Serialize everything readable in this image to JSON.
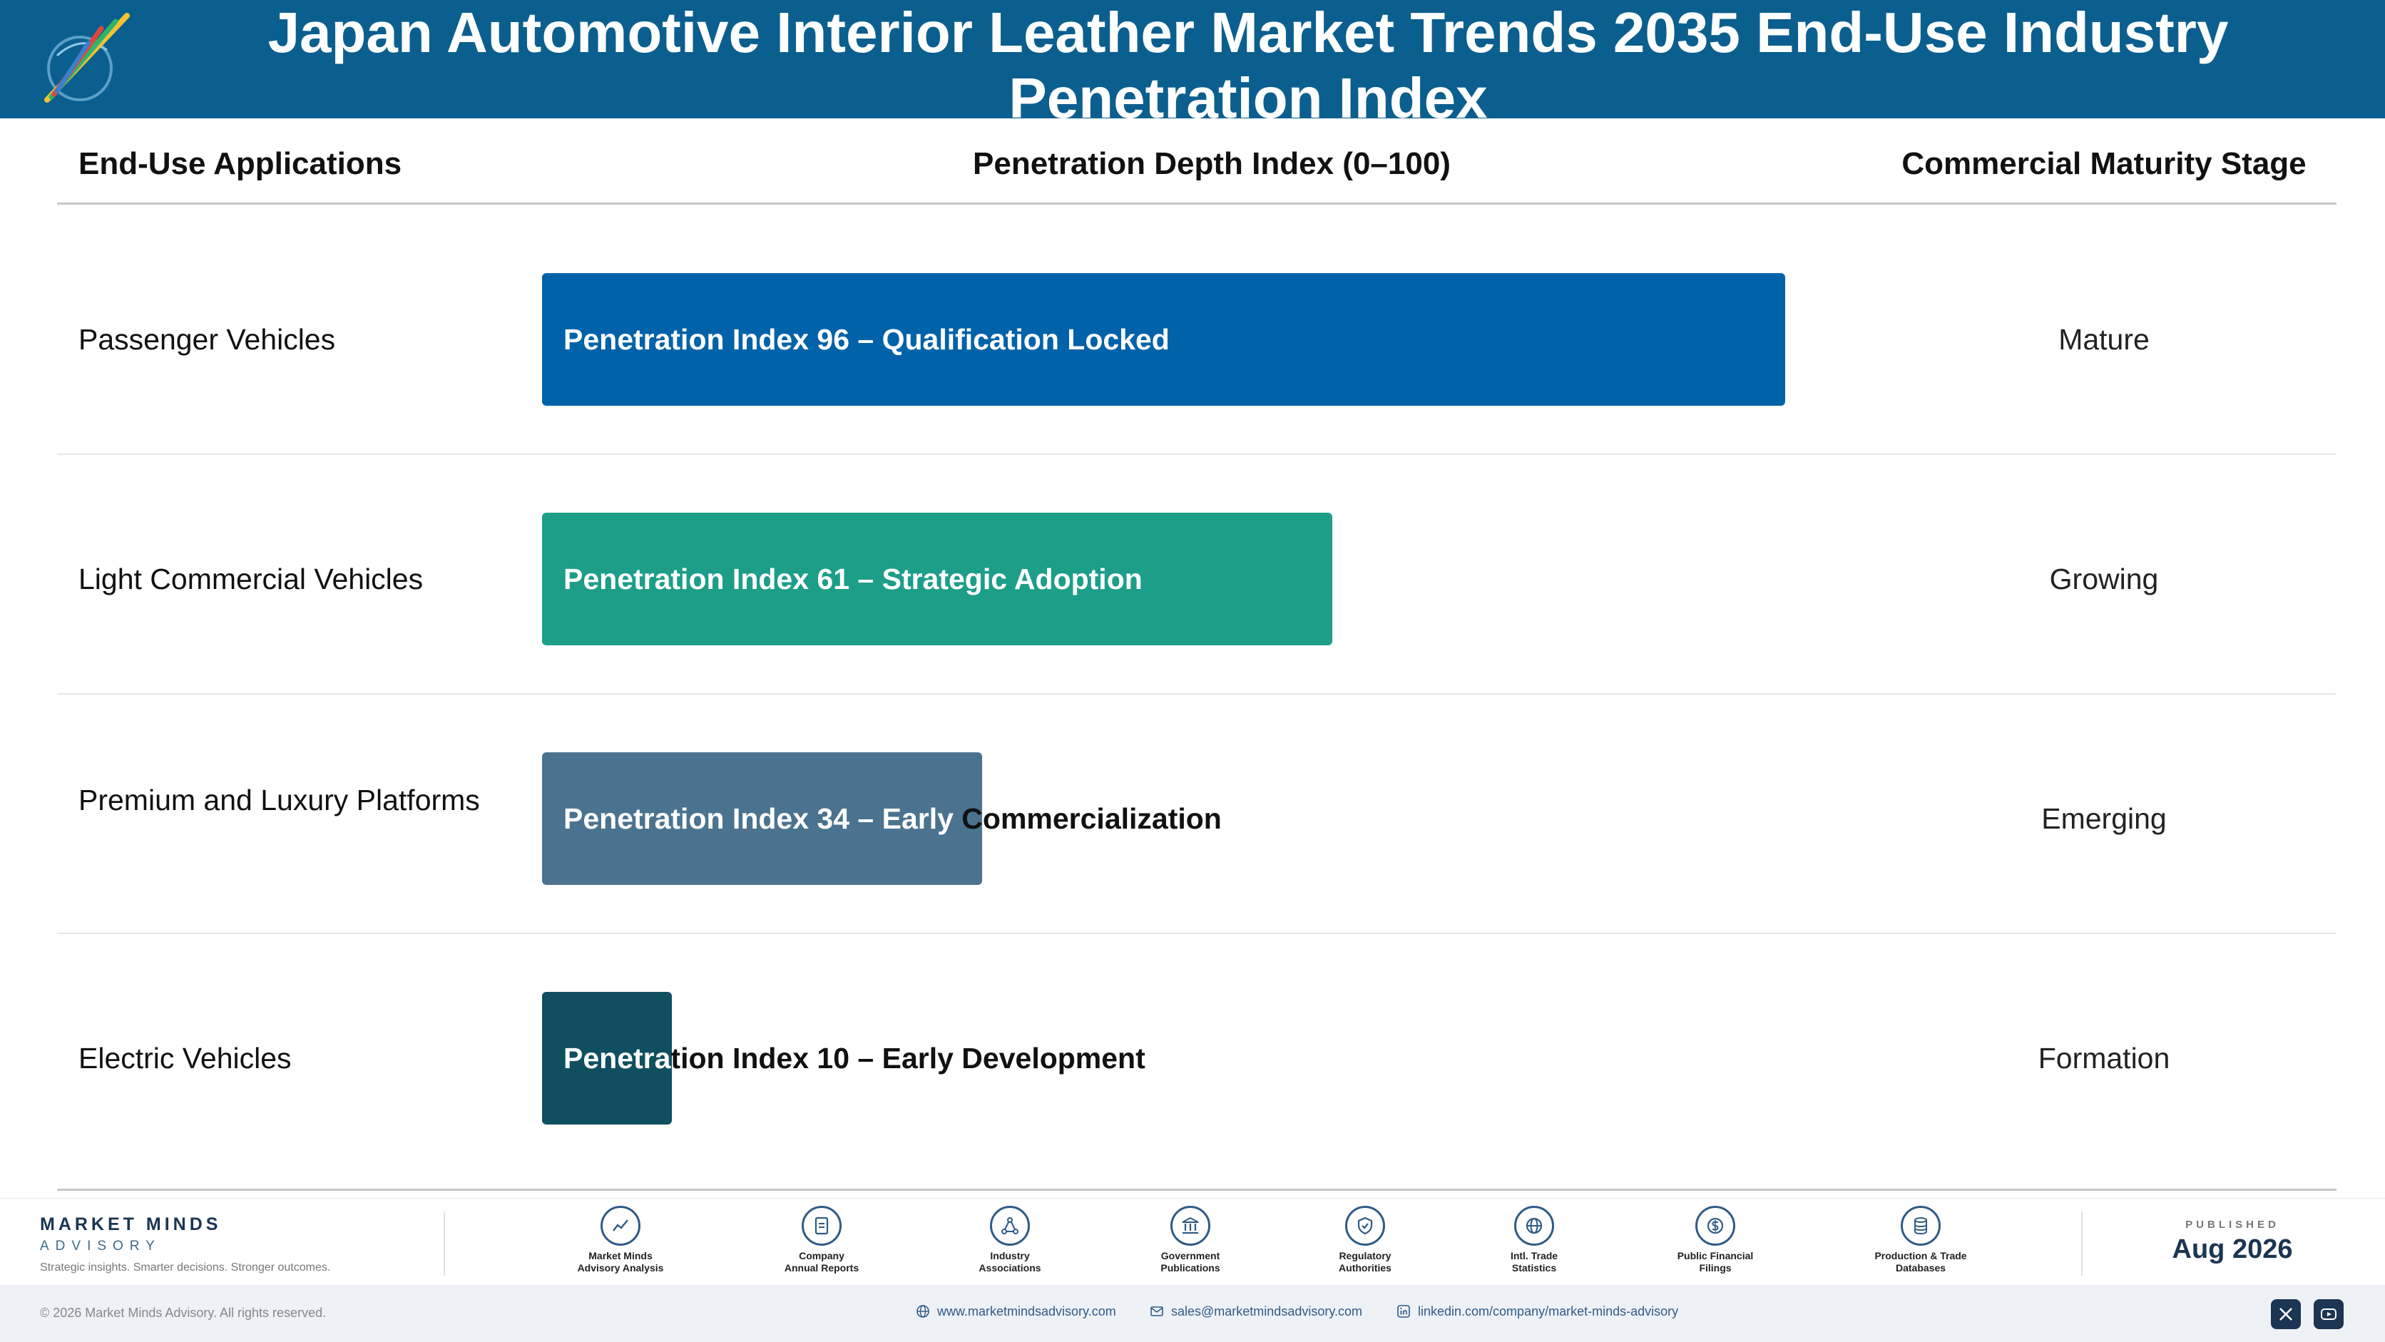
{
  "header": {
    "title": "Japan Automotive Interior Leather Market Trends 2035 End-Use Industry Penetration Index"
  },
  "columns": {
    "applications": "End-Use Applications",
    "index": "Penetration Depth Index (0–100)",
    "stage": "Commercial Maturity Stage"
  },
  "chart_data": {
    "type": "bar",
    "orientation": "horizontal",
    "xlim": [
      0,
      100
    ],
    "categories": [
      "Passenger Vehicles",
      "Light Commercial Vehicles",
      "Premium and Luxury Platforms",
      "Electric Vehicles"
    ],
    "values": [
      96,
      61,
      34,
      10
    ],
    "labels": [
      "Penetration Index 96 – Qualification Locked",
      "Penetration Index 61 – Strategic Adoption",
      "Penetration Index 34 – Early Commercialization",
      "Penetration Index 10 – Early Development"
    ],
    "stages": [
      "Mature",
      "Growing",
      "Emerging",
      "Formation"
    ],
    "colors": [
      "#0062a8",
      "#1c9e89",
      "#4b7390",
      "#0f4f60"
    ]
  },
  "footer": {
    "brand_name": "MARKET MINDS",
    "brand_sub": "ADVISORY",
    "tagline": "Strategic insights. Smarter decisions. Stronger outcomes.",
    "sources": [
      {
        "line1": "Market Minds",
        "line2": "Advisory Analysis",
        "icon": "chart-line-icon"
      },
      {
        "line1": "Company",
        "line2": "Annual Reports",
        "icon": "document-icon"
      },
      {
        "line1": "Industry",
        "line2": "Associations",
        "icon": "network-icon"
      },
      {
        "line1": "Government",
        "line2": "Publications",
        "icon": "government-building-icon"
      },
      {
        "line1": "Regulatory",
        "line2": "Authorities",
        "icon": "shield-check-icon"
      },
      {
        "line1": "Intl. Trade",
        "line2": "Statistics",
        "icon": "globe-icon"
      },
      {
        "line1": "Public Financial",
        "line2": "Filings",
        "icon": "dollar-coin-icon"
      },
      {
        "line1": "Production & Trade",
        "line2": "Databases",
        "icon": "database-icon"
      }
    ],
    "published_label": "PUBLISHED",
    "published_date": "Aug 2026",
    "copyright": "© 2026 Market Minds Advisory. All rights reserved.",
    "website": "www.marketmindsadvisory.com",
    "email": "sales@marketmindsadvisory.com",
    "linkedin": "linkedin.com/company/market-minds-advisory"
  }
}
